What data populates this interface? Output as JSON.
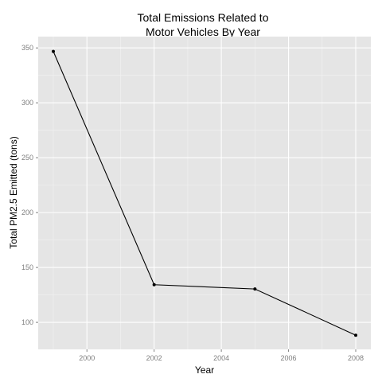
{
  "chart_data": {
    "type": "line",
    "title_lines": [
      "Total Emissions Related to",
      "Motor Vehicles By Year"
    ],
    "xlabel": "Year",
    "ylabel": "Total PM2.5 Emitted (tons)",
    "x": [
      1999,
      2002,
      2005,
      2008
    ],
    "y": [
      346.8,
      134.3,
      130.4,
      88.3
    ],
    "xlim": [
      1998.55,
      2008.45
    ],
    "ylim": [
      75.4,
      360.3
    ],
    "xticks": [
      2000,
      2002,
      2004,
      2006,
      2008
    ],
    "yticks": [
      100,
      150,
      200,
      250,
      300,
      350
    ],
    "grid": true,
    "colors": {
      "panel": "#e5e5e5",
      "grid_major": "#ffffff",
      "grid_minor": "#f2f2f2",
      "line": "#000000"
    }
  }
}
